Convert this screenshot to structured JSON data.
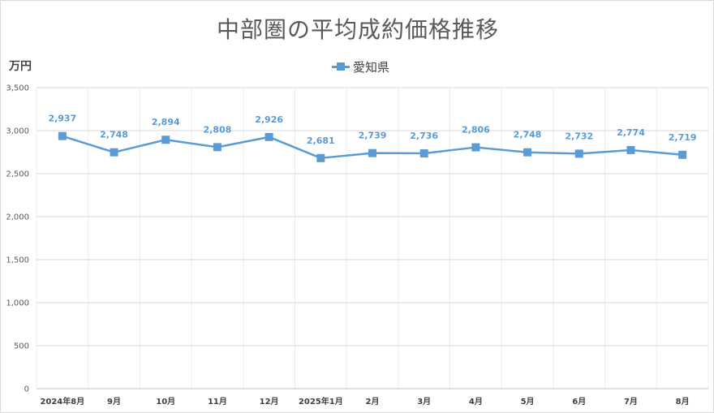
{
  "chart_data": {
    "type": "line",
    "title": "中部圏の平均成約価格推移",
    "ylabel": "万円",
    "xlabel": "",
    "ylim": [
      0,
      3500
    ],
    "yticks": [
      0,
      500,
      1000,
      1500,
      2000,
      2500,
      3000,
      3500
    ],
    "ytick_labels": [
      "0",
      "500",
      "1,000",
      "1,500",
      "2,000",
      "2,500",
      "3,000",
      "3,500"
    ],
    "categories": [
      "2024年8月",
      "9月",
      "10月",
      "11月",
      "12月",
      "2025年1月",
      "2月",
      "3月",
      "4月",
      "5月",
      "6月",
      "7月",
      "8月"
    ],
    "series": [
      {
        "name": "愛知県",
        "color": "#5b9bd5",
        "marker": "square",
        "values": [
          2937,
          2748,
          2894,
          2808,
          2926,
          2681,
          2739,
          2736,
          2806,
          2748,
          2732,
          2774,
          2719
        ],
        "value_labels": [
          "2,937",
          "2,748",
          "2,894",
          "2,808",
          "2,926",
          "2,681",
          "2,739",
          "2,736",
          "2,806",
          "2,748",
          "2,732",
          "2,774",
          "2,719"
        ]
      }
    ],
    "legend_position": "top-center",
    "grid": true
  }
}
